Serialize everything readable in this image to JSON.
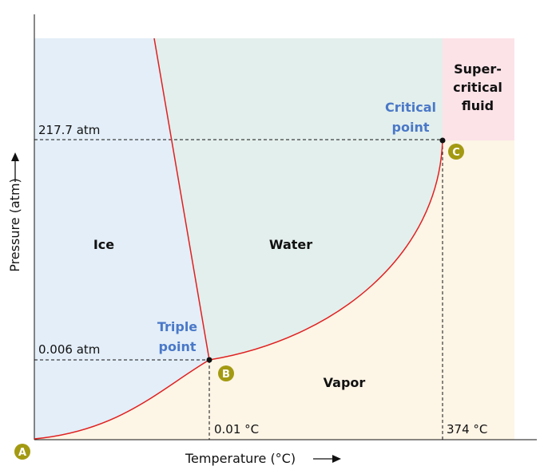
{
  "axes": {
    "x_label": "Temperature (°C)",
    "y_label": "Pressure (atm)"
  },
  "regions": {
    "ice": "Ice",
    "water": "Water",
    "vapor": "Vapor",
    "supercritical": [
      "Super-",
      "critical",
      "fluid"
    ]
  },
  "points": {
    "triple": {
      "marker": "B",
      "label": [
        "Triple",
        "point"
      ],
      "temperature": "0.01 °C",
      "pressure": "0.006 atm"
    },
    "critical": {
      "marker": "C",
      "label": [
        "Critical",
        "point"
      ],
      "temperature": "374 °C",
      "pressure": "217.7 atm"
    },
    "origin": {
      "marker": "A"
    }
  },
  "colors": {
    "ice_region": "#e3eef8",
    "water_region": "#e3efec",
    "vapor_region": "#fdf5e6",
    "supercritical_region": "#fce3e8",
    "phase_boundary": "#e02020",
    "point_label": "#4a78c8",
    "marker": "#a39a12"
  }
}
